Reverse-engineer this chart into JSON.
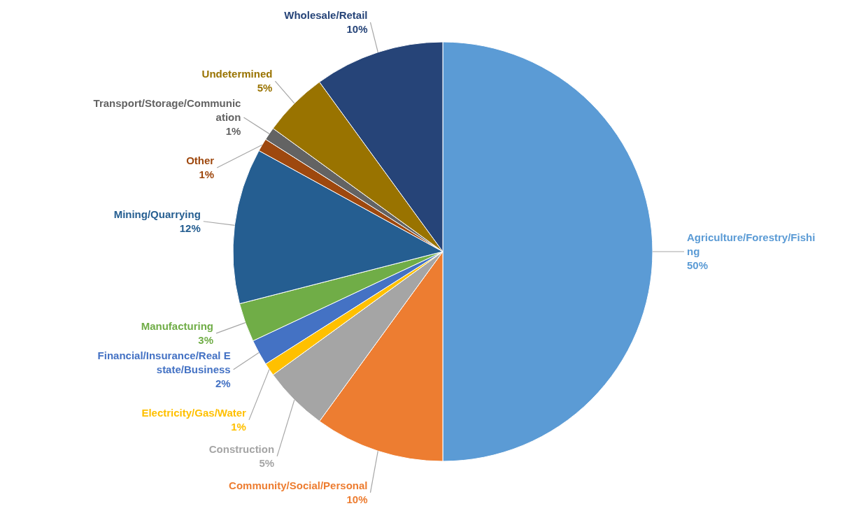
{
  "chart_data": {
    "type": "pie",
    "categories": [
      "Agriculture/Forestry/Fishing",
      "Community/Social/Personal",
      "Construction",
      "Electricity/Gas/Water",
      "Financial/Insurance/Real Estate/Business",
      "Manufacturing",
      "Mining/Quarrying",
      "Other",
      "Transport/Storage/Communication",
      "Undetermined",
      "Wholesale/Retail"
    ],
    "values": [
      50,
      10,
      5,
      1,
      2,
      3,
      12,
      1,
      1,
      5,
      10
    ],
    "value_labels": [
      "50%",
      "10%",
      "5%",
      "1%",
      "2%",
      "3%",
      "12%",
      "1%",
      "1%",
      "5%",
      "10%"
    ],
    "colors": [
      "#5b9bd5",
      "#ed7d31",
      "#a5a5a5",
      "#ffc000",
      "#4472c4",
      "#70ad47",
      "#255e91",
      "#9e480e",
      "#636363",
      "#997300",
      "#264478"
    ]
  }
}
